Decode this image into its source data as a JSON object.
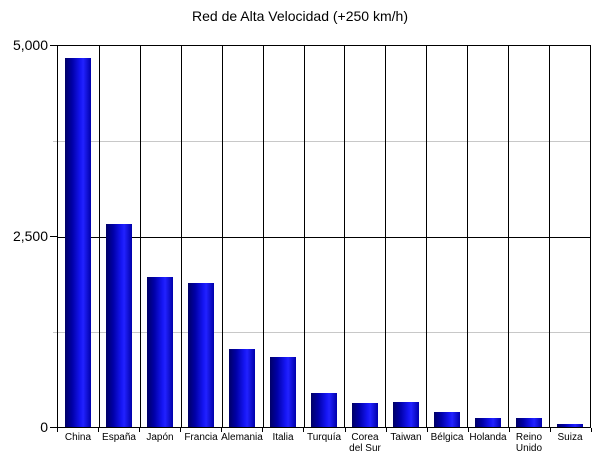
{
  "chart_data": {
    "type": "bar",
    "title": "Red de Alta Velocidad (+250 km/h)",
    "categories": [
      "China",
      "España",
      "Japón",
      "Francia",
      "Alemania",
      "Italia",
      "Turquía",
      "Corea\ndel Sur",
      "Taiwan",
      "Bélgica",
      "Holanda",
      "Reino\nUnido",
      "Suiza"
    ],
    "values": [
      4840,
      2660,
      1975,
      1890,
      1030,
      920,
      445,
      315,
      330,
      200,
      120,
      115,
      40
    ],
    "xlabel": "",
    "ylabel": "",
    "ylim": [
      0,
      5000
    ],
    "y_ticks": [
      {
        "value": 0,
        "label": "0"
      },
      {
        "value": 2500,
        "label": "2,500"
      },
      {
        "value": 5000,
        "label": "5,000"
      }
    ],
    "y_minor_gridlines": [
      1250,
      3750
    ],
    "grid": "vertical category separators, horizontal line at 2500 (black), faint minor lines at 1250 and 3750",
    "legend": "none",
    "colors": {
      "bar_edge": "#000066",
      "bar_mid": "#0000a8",
      "bar_highlight": "#2222ff",
      "grid_major": "#000000",
      "grid_minor": "#c8c8c8",
      "background": "#ffffff",
      "text": "#000000"
    }
  }
}
